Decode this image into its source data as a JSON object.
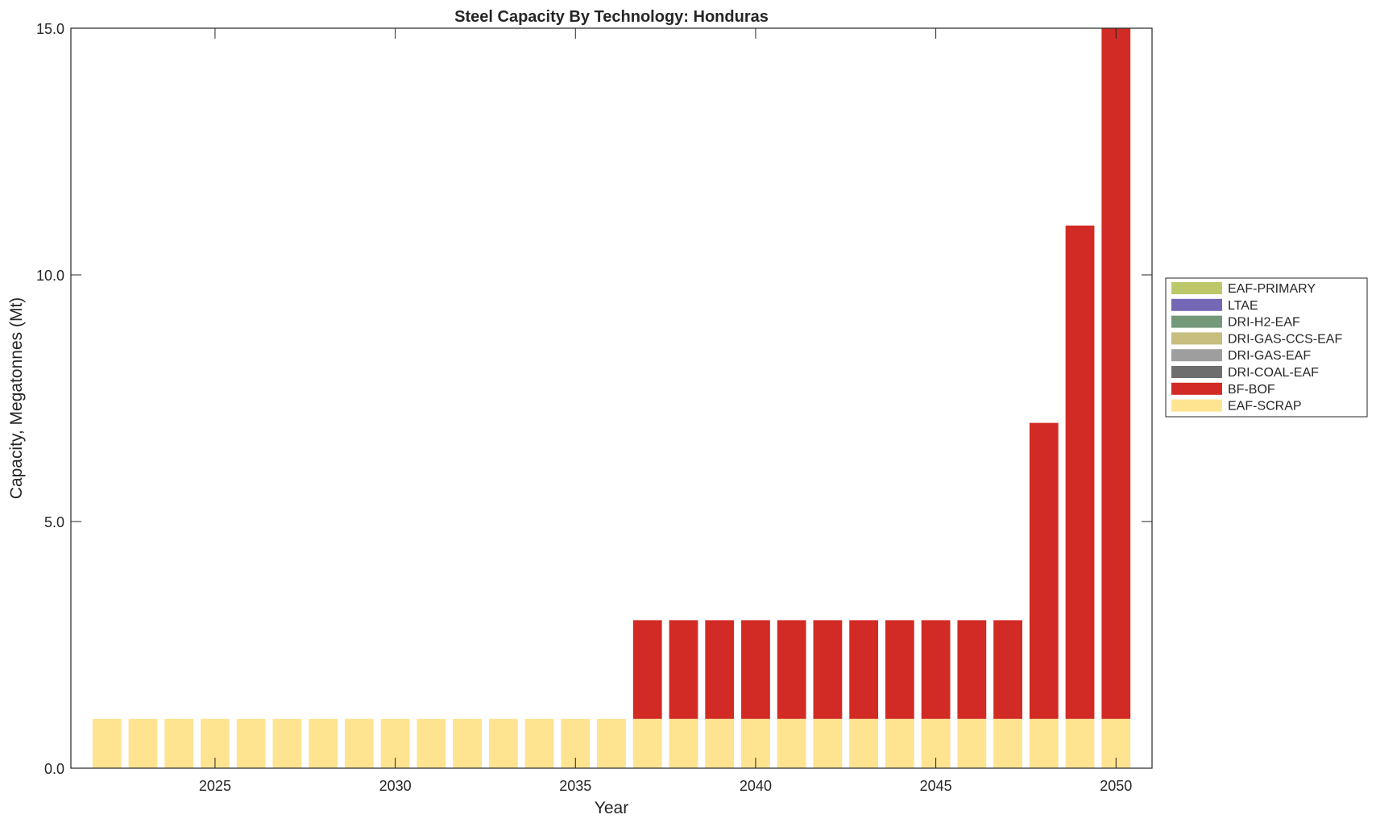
{
  "chart_data": {
    "type": "bar",
    "stacked": true,
    "title": "Steel Capacity By Technology: Honduras",
    "xlabel": "Year",
    "ylabel": "Capacity, Megatonnes (Mt)",
    "xlim": [
      2021,
      2051
    ],
    "ylim": [
      0,
      15
    ],
    "xticks": [
      2025,
      2030,
      2035,
      2040,
      2045,
      2050
    ],
    "xtick_labels": [
      "2025",
      "2030",
      "2035",
      "2040",
      "2045",
      "2050"
    ],
    "yticks": [
      0,
      5,
      10,
      15
    ],
    "ytick_labels": [
      "0.0",
      "5.0",
      "10.0",
      "15.0"
    ],
    "grid": false,
    "legend_position": "right-outside",
    "x": [
      2022,
      2023,
      2024,
      2025,
      2026,
      2027,
      2028,
      2029,
      2030,
      2031,
      2032,
      2033,
      2034,
      2035,
      2036,
      2037,
      2038,
      2039,
      2040,
      2041,
      2042,
      2043,
      2044,
      2045,
      2046,
      2047,
      2048,
      2049,
      2050
    ],
    "series": [
      {
        "name": "EAF-SCRAP",
        "color": "#FEE391",
        "values": [
          1,
          1,
          1,
          1,
          1,
          1,
          1,
          1,
          1,
          1,
          1,
          1,
          1,
          1,
          1,
          1,
          1,
          1,
          1,
          1,
          1,
          1,
          1,
          1,
          1,
          1,
          1,
          1,
          1
        ]
      },
      {
        "name": "BF-BOF",
        "color": "#D22B25",
        "values": [
          0,
          0,
          0,
          0,
          0,
          0,
          0,
          0,
          0,
          0,
          0,
          0,
          0,
          0,
          0,
          2,
          2,
          2,
          2,
          2,
          2,
          2,
          2,
          2,
          2,
          2,
          6,
          10,
          14
        ]
      },
      {
        "name": "DRI-COAL-EAF",
        "color": "#6E6E6E",
        "values": [
          0,
          0,
          0,
          0,
          0,
          0,
          0,
          0,
          0,
          0,
          0,
          0,
          0,
          0,
          0,
          0,
          0,
          0,
          0,
          0,
          0,
          0,
          0,
          0,
          0,
          0,
          0,
          0,
          0
        ]
      },
      {
        "name": "DRI-GAS-EAF",
        "color": "#9E9E9E",
        "values": [
          0,
          0,
          0,
          0,
          0,
          0,
          0,
          0,
          0,
          0,
          0,
          0,
          0,
          0,
          0,
          0,
          0,
          0,
          0,
          0,
          0,
          0,
          0,
          0,
          0,
          0,
          0,
          0,
          0
        ]
      },
      {
        "name": "DRI-GAS-CCS-EAF",
        "color": "#C6BD7E",
        "values": [
          0,
          0,
          0,
          0,
          0,
          0,
          0,
          0,
          0,
          0,
          0,
          0,
          0,
          0,
          0,
          0,
          0,
          0,
          0,
          0,
          0,
          0,
          0,
          0,
          0,
          0,
          0,
          0,
          0
        ]
      },
      {
        "name": "DRI-H2-EAF",
        "color": "#73987A",
        "values": [
          0,
          0,
          0,
          0,
          0,
          0,
          0,
          0,
          0,
          0,
          0,
          0,
          0,
          0,
          0,
          0,
          0,
          0,
          0,
          0,
          0,
          0,
          0,
          0,
          0,
          0,
          0,
          0,
          0
        ]
      },
      {
        "name": "LTAE",
        "color": "#7467B6",
        "values": [
          0,
          0,
          0,
          0,
          0,
          0,
          0,
          0,
          0,
          0,
          0,
          0,
          0,
          0,
          0,
          0,
          0,
          0,
          0,
          0,
          0,
          0,
          0,
          0,
          0,
          0,
          0,
          0,
          0
        ]
      },
      {
        "name": "EAF-PRIMARY",
        "color": "#BDC86B",
        "values": [
          0,
          0,
          0,
          0,
          0,
          0,
          0,
          0,
          0,
          0,
          0,
          0,
          0,
          0,
          0,
          0,
          0,
          0,
          0,
          0,
          0,
          0,
          0,
          0,
          0,
          0,
          0,
          0,
          0
        ]
      }
    ],
    "legend_order": [
      "EAF-PRIMARY",
      "LTAE",
      "DRI-H2-EAF",
      "DRI-GAS-CCS-EAF",
      "DRI-GAS-EAF",
      "DRI-COAL-EAF",
      "BF-BOF",
      "EAF-SCRAP"
    ]
  }
}
